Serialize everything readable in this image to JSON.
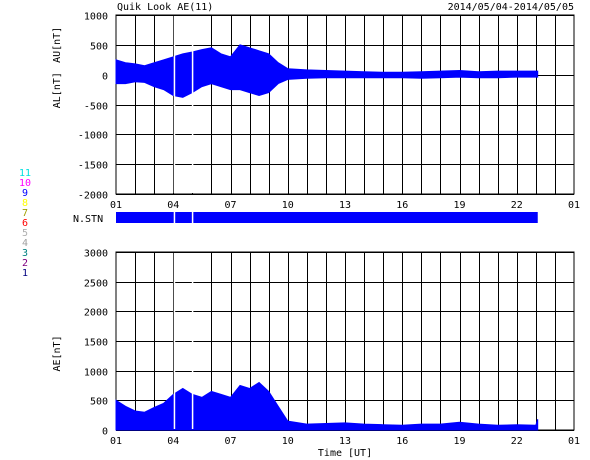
{
  "header": {
    "title": "Quik Look AE(11)",
    "date_range": "2014/05/04-2014/05/05"
  },
  "station_legend": [
    {
      "label": "11",
      "color": "#00e0e0"
    },
    {
      "label": "10",
      "color": "#ff00ff"
    },
    {
      "label": "9",
      "color": "#0000ff"
    },
    {
      "label": "8",
      "color": "#ffff00"
    },
    {
      "label": "7",
      "color": "#a0a000"
    },
    {
      "label": "6",
      "color": "#ff0000"
    },
    {
      "label": "5",
      "color": "#b0b0b0"
    },
    {
      "label": "4",
      "color": "#a0a0a0"
    },
    {
      "label": "3",
      "color": "#008080"
    },
    {
      "label": "2",
      "color": "#800080"
    },
    {
      "label": "1",
      "color": "#000080"
    }
  ],
  "colors": {
    "fill": "#0000ff",
    "grid": "#000000"
  },
  "chart_data": [
    {
      "type": "area",
      "name": "au-al-panel",
      "ylabel_top": "AU[nT]",
      "ylabel_bottom": "AL[nT]",
      "ylim": [
        -2000,
        1000
      ],
      "yticks": [
        1000,
        500,
        0,
        -500,
        -1000,
        -1500,
        -2000
      ],
      "xlim": [
        1,
        25
      ],
      "xticks": [
        "01",
        "04",
        "07",
        "10",
        "13",
        "16",
        "19",
        "22",
        "01"
      ],
      "gaps": [
        4.05,
        5.0
      ],
      "data_end": 23.1,
      "series": [
        {
          "name": "AU",
          "x": [
            1,
            1.5,
            2,
            2.5,
            3,
            3.5,
            4,
            4.5,
            5,
            5.5,
            6,
            6.5,
            7,
            7.5,
            8,
            8.5,
            9,
            9.5,
            10,
            11,
            12,
            13,
            14,
            15,
            16,
            17,
            18,
            19,
            20,
            21,
            22,
            23,
            23.1
          ],
          "values": [
            250,
            200,
            180,
            150,
            200,
            250,
            300,
            350,
            380,
            420,
            450,
            350,
            300,
            500,
            450,
            400,
            350,
            200,
            100,
            80,
            70,
            60,
            50,
            40,
            40,
            50,
            60,
            70,
            50,
            60,
            60,
            60,
            60
          ]
        },
        {
          "name": "AL",
          "x": [
            1,
            1.5,
            2,
            2.5,
            3,
            3.5,
            4,
            4.5,
            5,
            5.5,
            6,
            6.5,
            7,
            7.5,
            8,
            8.5,
            9,
            9.5,
            10,
            11,
            12,
            13,
            14,
            15,
            16,
            17,
            18,
            19,
            20,
            21,
            22,
            23,
            23.1
          ],
          "values": [
            -150,
            -150,
            -120,
            -130,
            -200,
            -250,
            -350,
            -380,
            -300,
            -200,
            -150,
            -200,
            -250,
            -250,
            -300,
            -350,
            -300,
            -150,
            -80,
            -60,
            -50,
            -50,
            -50,
            -50,
            -50,
            -60,
            -50,
            -40,
            -50,
            -50,
            -40,
            -40,
            -40
          ]
        }
      ]
    },
    {
      "type": "area",
      "name": "ae-panel",
      "ylabel": "AE[nT]",
      "xlabel": "Time [UT]",
      "ylim": [
        0,
        3000
      ],
      "yticks": [
        3000,
        2500,
        2000,
        1500,
        1000,
        500,
        0
      ],
      "xlim": [
        1,
        25
      ],
      "xticks": [
        "01",
        "04",
        "07",
        "10",
        "13",
        "16",
        "19",
        "22",
        "01"
      ],
      "gaps": [
        4.05,
        5.0
      ],
      "data_end": 23.1,
      "series": [
        {
          "name": "AE",
          "x": [
            1,
            1.5,
            2,
            2.5,
            3,
            3.5,
            4,
            4.5,
            5,
            5.5,
            6,
            6.5,
            7,
            7.5,
            8,
            8.5,
            9,
            9.5,
            10,
            11,
            12,
            13,
            14,
            15,
            16,
            17,
            18,
            19,
            20,
            21,
            22,
            23,
            23.1
          ],
          "values": [
            500,
            400,
            320,
            300,
            380,
            450,
            600,
            700,
            600,
            550,
            650,
            600,
            550,
            750,
            700,
            800,
            650,
            400,
            150,
            100,
            110,
            120,
            100,
            90,
            80,
            100,
            100,
            130,
            100,
            80,
            90,
            80,
            180
          ]
        }
      ]
    }
  ],
  "n_stn": {
    "label": "N.STN",
    "gaps": [
      4.05,
      5.0
    ],
    "data_end": 23.1
  }
}
